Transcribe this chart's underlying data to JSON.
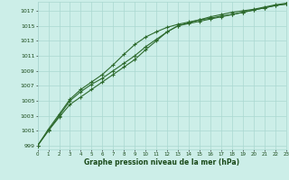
{
  "title": "Graphe pression niveau de la mer (hPa)",
  "bg_color": "#cceee8",
  "grid_color": "#aad8d0",
  "line_color": "#2d6a2d",
  "xlim": [
    0,
    23
  ],
  "ylim": [
    998.5,
    1018.2
  ],
  "ytick_vals": [
    999,
    1001,
    1003,
    1005,
    1007,
    1009,
    1011,
    1013,
    1015,
    1017
  ],
  "xtick_vals": [
    0,
    1,
    2,
    3,
    4,
    5,
    6,
    7,
    8,
    9,
    10,
    11,
    12,
    13,
    14,
    15,
    16,
    17,
    18,
    19,
    20,
    21,
    22,
    23
  ],
  "series": [
    [
      999.0,
      1001.0,
      1003.0,
      1005.0,
      1006.2,
      1007.2,
      1008.0,
      1009.0,
      1010.0,
      1011.0,
      1012.2,
      1013.2,
      1014.2,
      1015.0,
      1015.4,
      1015.8,
      1016.2,
      1016.5,
      1016.8,
      1017.0,
      1017.2,
      1017.5,
      1017.8,
      1018.0
    ],
    [
      999.0,
      1001.2,
      1003.2,
      1005.2,
      1006.5,
      1007.5,
      1008.5,
      1009.8,
      1011.2,
      1012.5,
      1013.5,
      1014.2,
      1014.8,
      1015.2,
      1015.5,
      1015.8,
      1016.0,
      1016.3,
      1016.5,
      1016.8,
      1017.1,
      1017.4,
      1017.7,
      1017.9
    ],
    [
      999.0,
      1001.0,
      1002.8,
      1004.5,
      1005.5,
      1006.5,
      1007.5,
      1008.5,
      1009.5,
      1010.5,
      1011.8,
      1013.0,
      1014.2,
      1015.0,
      1015.3,
      1015.6,
      1015.9,
      1016.2,
      1016.5,
      1016.8,
      1017.1,
      1017.4,
      1017.7,
      1017.9
    ]
  ]
}
